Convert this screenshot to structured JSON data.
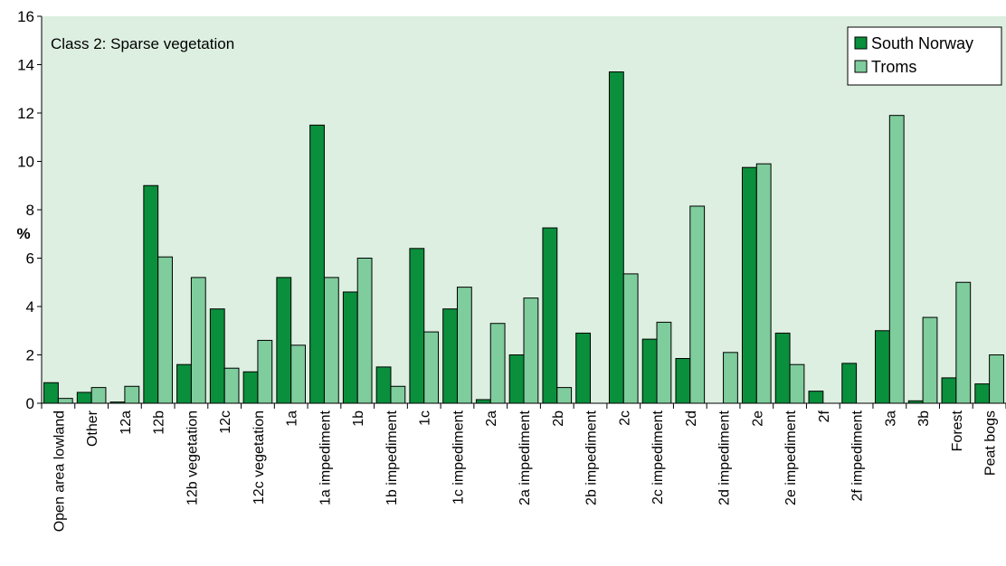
{
  "chart_data": {
    "type": "bar",
    "title": "",
    "annotation": "Class 2: Sparse vegetation",
    "xlabel": "",
    "ylabel": "%",
    "ylim": [
      0,
      16
    ],
    "yticks": [
      0,
      2,
      4,
      6,
      8,
      10,
      12,
      14,
      16
    ],
    "grid": false,
    "legend_position": "top-right",
    "background_color": "#dcefe0",
    "categories": [
      "Open area lowland",
      "Other",
      "12a",
      "12b",
      "12b vegetation",
      "12c",
      "12c vegetation",
      "1a",
      "1a impediment",
      "1b",
      "1b impediment",
      "1c",
      "1c impediment",
      "2a",
      "2a impediment",
      "2b",
      "2b impediment",
      "2c",
      "2c impediment",
      "2d",
      "2d impediment",
      "2e",
      "2e impediment",
      "2f",
      "2f impediment",
      "3a",
      "3b",
      "Forest",
      "Peat bogs"
    ],
    "series": [
      {
        "name": "South Norway",
        "color": "#0a8f3c",
        "values": [
          0.85,
          0.45,
          0.05,
          9.0,
          1.6,
          3.9,
          1.3,
          5.2,
          11.5,
          4.6,
          1.5,
          6.4,
          3.9,
          0.15,
          2.0,
          7.25,
          2.9,
          13.7,
          2.65,
          1.85,
          0,
          9.75,
          2.9,
          0.5,
          1.65,
          3.0,
          0.1,
          1.05,
          0.8
        ]
      },
      {
        "name": "Troms",
        "color": "#7fcc9c",
        "values": [
          0.2,
          0.65,
          0.7,
          6.05,
          5.2,
          1.45,
          2.6,
          2.4,
          5.2,
          6.0,
          0.7,
          2.95,
          4.8,
          3.3,
          4.35,
          0.65,
          0,
          5.35,
          3.35,
          8.15,
          2.1,
          9.9,
          1.6,
          0,
          0,
          11.9,
          3.55,
          5.0,
          2.0
        ]
      }
    ]
  }
}
